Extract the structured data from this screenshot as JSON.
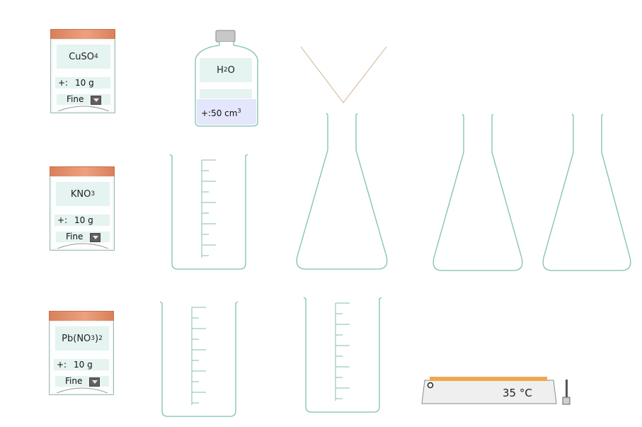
{
  "reagents": [
    {
      "name": "CuSO",
      "sub1": "4",
      "sub2": "",
      "suffix": "",
      "prefix": "+:",
      "amount": "10 g",
      "grain": "Fine"
    },
    {
      "name": "KNO",
      "sub1": "3",
      "sub2": "",
      "suffix": "",
      "prefix": "+:",
      "amount": "10 g",
      "grain": "Fine"
    },
    {
      "name": "Pb(NO",
      "sub1": "3",
      "mid": ")",
      "sub2": "2",
      "prefix": "+:",
      "amount": "10 g",
      "grain": "Fine"
    }
  ],
  "water": {
    "name": "H",
    "sub": "2",
    "suffix": "O",
    "amount": "+:50 cm",
    "unit_sup": "3"
  },
  "hotplate": {
    "temperature": "35 °C"
  },
  "colors": {
    "glass": "#7fbfb0",
    "lid": "#e08a65",
    "hotplate_top": "#f0a850",
    "label_bg": "#e5f3f1",
    "water": "#e4e6fb"
  }
}
